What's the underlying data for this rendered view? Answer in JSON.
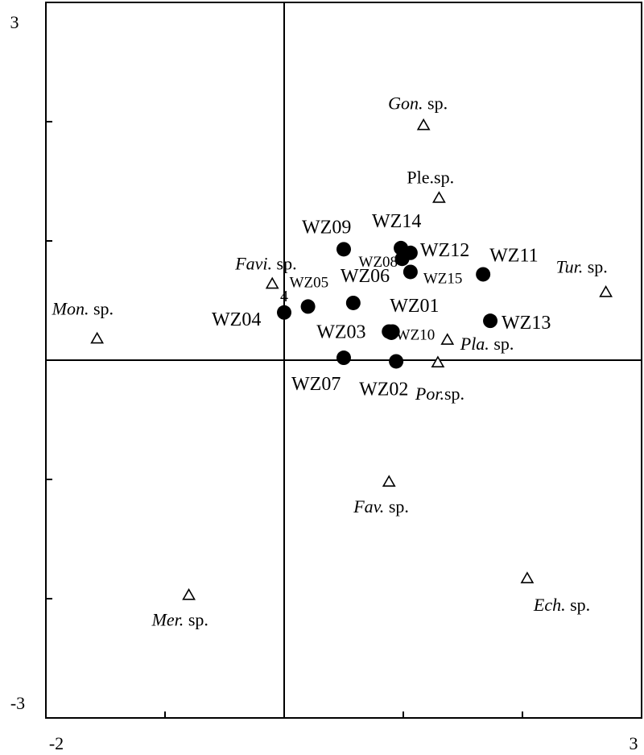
{
  "chart_data": {
    "type": "scatter",
    "title": "",
    "xlabel": "",
    "ylabel": "",
    "xlim": [
      -2,
      3
    ],
    "ylim": [
      -3,
      3
    ],
    "grid": false,
    "reference_lines": {
      "x": 0,
      "y": 0
    },
    "tick_labels": {
      "x_min": "-2",
      "x_max": "3",
      "y_min": "-3",
      "y_max": "3"
    },
    "x_ticks": [
      -2,
      -1,
      0,
      1,
      2,
      3
    ],
    "y_ticks": [
      -3,
      -2,
      -1,
      0,
      1,
      2,
      3
    ],
    "series": [
      {
        "name": "",
        "marker": "filled-circle",
        "color": "#000000",
        "points": [
          {
            "label": "WZ01",
            "x": 0.9,
            "y": 0.23
          },
          {
            "label": "WZ02",
            "x": 0.94,
            "y": -0.01
          },
          {
            "label": "WZ03",
            "x": 0.88,
            "y": 0.24
          },
          {
            "label": "WZ04",
            "x": 0.0,
            "y": 0.4
          },
          {
            "label": "WZ05",
            "x": 0.2,
            "y": 0.45
          },
          {
            "label": "WZ06",
            "x": 0.58,
            "y": 0.48
          },
          {
            "label": "WZ07",
            "x": 0.5,
            "y": 0.02
          },
          {
            "label": "WZ08",
            "x": 0.99,
            "y": 0.85
          },
          {
            "label": "WZ09",
            "x": 0.5,
            "y": 0.93
          },
          {
            "label": "WZ10",
            "x": 0.91,
            "y": 0.24
          },
          {
            "label": "WZ11",
            "x": 1.67,
            "y": 0.72
          },
          {
            "label": "WZ12",
            "x": 1.06,
            "y": 0.9
          },
          {
            "label": "WZ13",
            "x": 1.73,
            "y": 0.33
          },
          {
            "label": "WZ14",
            "x": 0.98,
            "y": 0.94
          },
          {
            "label": "WZ15",
            "x": 1.06,
            "y": 0.74
          }
        ]
      },
      {
        "name": "",
        "marker": "open-triangle",
        "color": "#000000",
        "points": [
          {
            "label_italic": "Gon.",
            "label_rest": " sp.",
            "x": 1.17,
            "y": 1.97
          },
          {
            "label_italic": "",
            "label_rest": "Ple.sp.",
            "x": 1.3,
            "y": 1.36
          },
          {
            "label_italic": "Favi.",
            "label_rest": " sp.",
            "x": -0.1,
            "y": 0.64
          },
          {
            "label_italic": "Tur.",
            "label_rest": " sp.",
            "x": 2.7,
            "y": 0.57
          },
          {
            "label_italic": "Mon.",
            "label_rest": " sp.",
            "x": -1.57,
            "y": 0.18
          },
          {
            "label_italic": "Pla.",
            "label_rest": " sp.",
            "x": 1.37,
            "y": 0.17
          },
          {
            "label_italic": "Por.",
            "label_rest": "sp.",
            "x": 1.29,
            "y": -0.02
          },
          {
            "label_italic": "Fav.",
            "label_rest": " sp.",
            "x": 0.88,
            "y": -1.02
          },
          {
            "label_italic": "Ech.",
            "label_rest": " sp.",
            "x": 2.04,
            "y": -1.83
          },
          {
            "label_italic": "Mer.",
            "label_rest": " sp.",
            "x": -0.8,
            "y": -1.97
          }
        ]
      }
    ],
    "annotations": [
      {
        "text": "4",
        "x": 0.0,
        "y": 0.52
      }
    ]
  }
}
